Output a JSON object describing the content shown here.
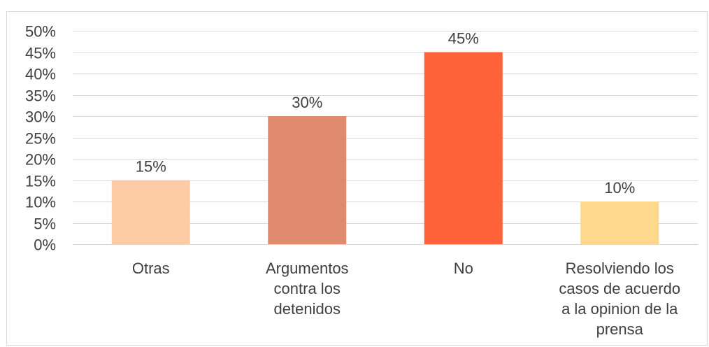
{
  "chart_data": {
    "type": "bar",
    "title": "",
    "xlabel": "",
    "ylabel": "",
    "categories": [
      "Otras",
      "Argumentos contra los detenidos",
      "No",
      "Resolviendo los casos de acuerdo a la opinion de la prensa"
    ],
    "category_lines": [
      [
        "Otras"
      ],
      [
        "Argumentos",
        "contra los",
        "detenidos"
      ],
      [
        "No"
      ],
      [
        "Resolviendo los",
        "casos de acuerdo",
        "a la opinion de la",
        "prensa"
      ]
    ],
    "values": [
      15,
      30,
      45,
      10
    ],
    "data_labels": [
      "15%",
      "30%",
      "45%",
      "10%"
    ],
    "bar_colors": [
      "#FECBA7",
      "#E08B70",
      "#FF6239",
      "#FFD88E"
    ],
    "ylim": [
      0,
      50
    ],
    "yticks": [
      0,
      5,
      10,
      15,
      20,
      25,
      30,
      35,
      40,
      45,
      50
    ],
    "ytick_labels": [
      "0%",
      "5%",
      "10%",
      "15%",
      "20%",
      "25%",
      "30%",
      "35%",
      "40%",
      "45%",
      "50%"
    ],
    "grid": true,
    "grid_color": "#d9d9d9",
    "legend": "none"
  }
}
